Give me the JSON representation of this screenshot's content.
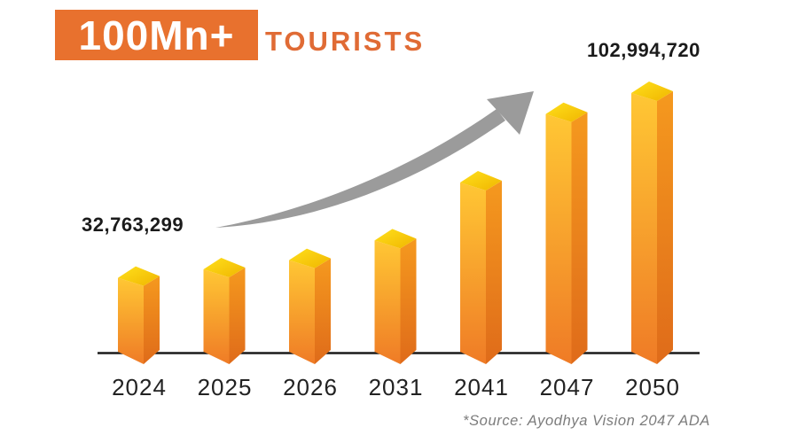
{
  "header": {
    "badge": "100Mn+",
    "title": "TOURISTS"
  },
  "chart_data": {
    "type": "bar",
    "title": "100Mn+ TOURISTS",
    "categories": [
      "2024",
      "2025",
      "2026",
      "2031",
      "2041",
      "2047",
      "2050"
    ],
    "values": [
      32763299,
      36000000,
      39500000,
      47000000,
      69000000,
      95000000,
      102994720
    ],
    "labeled_values": {
      "2024": "32,763,299",
      "2050": "102,994,720"
    },
    "value_label_note": "only the first and last bars carry printed data labels; intermediate values estimated from bar heights",
    "xlabel": "",
    "ylabel": "",
    "ylim": [
      0,
      110000000
    ],
    "grid": false,
    "legend": false,
    "annotations": [
      "gray curved growth arrow sweeping up from the 2024 label toward the 2047 bar"
    ]
  },
  "labels": {
    "start_value": "32,763,299",
    "end_value": "102,994,720"
  },
  "footer": {
    "source": "*Source: Ayodhya Vision 2047 ADA"
  },
  "colors": {
    "accent_orange": "#E8712E",
    "title_orange": "#E06B35",
    "bar_top_light": "#FFE01C",
    "bar_top_dark": "#F0B500",
    "bar_front_top": "#FFC734",
    "bar_front_bottom": "#EF7B26",
    "bar_side_top": "#F5991E",
    "bar_side_bottom": "#DF6B1A",
    "arrow_gray": "#9B9B9B",
    "axis_black": "#1A1A1A",
    "text_black": "#1B1B1B",
    "source_gray": "#7C7C7C"
  }
}
